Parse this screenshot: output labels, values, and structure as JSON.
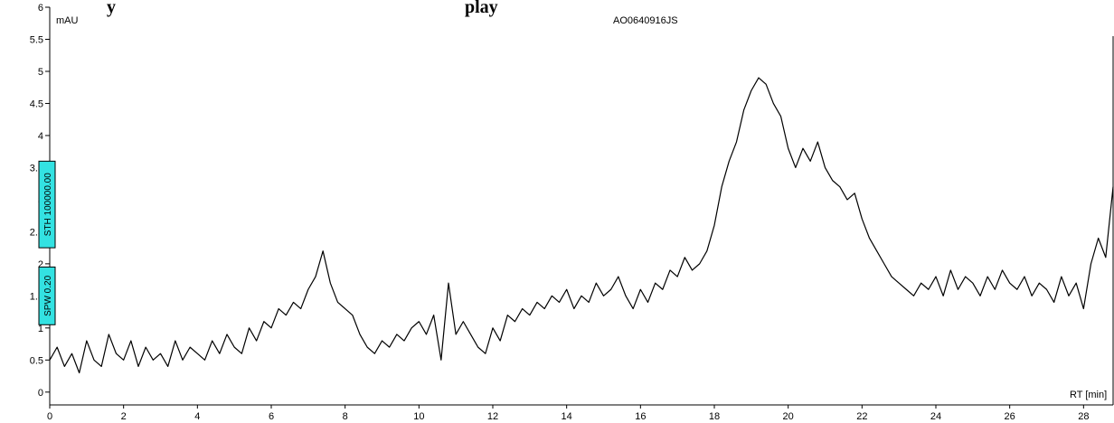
{
  "chart_data": {
    "type": "line",
    "title_fragments": [
      "y",
      "play"
    ],
    "sample_name": "AO0640916JS",
    "ylabel": "mAU",
    "xlabel": "RT [min]",
    "xlim": [
      0,
      28.8
    ],
    "ylim": [
      -0.2,
      6
    ],
    "grid": false,
    "legend": "none",
    "x_ticks": [
      0,
      2,
      4,
      6,
      8,
      10,
      12,
      14,
      16,
      18,
      20,
      22,
      24,
      26,
      28
    ],
    "y_ticks": [
      0,
      0.5,
      1,
      1.5,
      2,
      2.5,
      3,
      3.5,
      4,
      4.5,
      5,
      5.5,
      6
    ],
    "y_tick_labels": [
      "0",
      "0.5",
      "1",
      "1.5",
      "2",
      "2.5",
      "3",
      "3.5",
      "4",
      "4.5",
      "5",
      "5.5",
      "6"
    ],
    "series": [
      {
        "color": "#000000",
        "x": [
          0.0,
          0.2,
          0.4,
          0.6,
          0.8,
          1.0,
          1.2,
          1.4,
          1.6,
          1.8,
          2.0,
          2.2,
          2.4,
          2.6,
          2.8,
          3.0,
          3.2,
          3.4,
          3.6,
          3.8,
          4.0,
          4.2,
          4.4,
          4.6,
          4.8,
          5.0,
          5.2,
          5.4,
          5.6,
          5.8,
          6.0,
          6.2,
          6.4,
          6.6,
          6.8,
          7.0,
          7.2,
          7.4,
          7.6,
          7.8,
          8.0,
          8.2,
          8.4,
          8.6,
          8.8,
          9.0,
          9.2,
          9.4,
          9.6,
          9.8,
          10.0,
          10.2,
          10.4,
          10.6,
          10.8,
          11.0,
          11.2,
          11.4,
          11.6,
          11.8,
          12.0,
          12.2,
          12.4,
          12.6,
          12.8,
          13.0,
          13.2,
          13.4,
          13.6,
          13.8,
          14.0,
          14.2,
          14.4,
          14.6,
          14.8,
          15.0,
          15.2,
          15.4,
          15.6,
          15.8,
          16.0,
          16.2,
          16.4,
          16.6,
          16.8,
          17.0,
          17.2,
          17.4,
          17.6,
          17.8,
          18.0,
          18.2,
          18.4,
          18.6,
          18.8,
          19.0,
          19.2,
          19.4,
          19.6,
          19.8,
          20.0,
          20.2,
          20.4,
          20.6,
          20.8,
          21.0,
          21.2,
          21.4,
          21.6,
          21.8,
          22.0,
          22.2,
          22.4,
          22.6,
          22.8,
          23.0,
          23.2,
          23.4,
          23.6,
          23.8,
          24.0,
          24.2,
          24.4,
          24.6,
          24.8,
          25.0,
          25.2,
          25.4,
          25.6,
          25.8,
          26.0,
          26.2,
          26.4,
          26.6,
          26.8,
          27.0,
          27.2,
          27.4,
          27.6,
          27.8,
          28.0,
          28.2,
          28.4,
          28.6,
          28.8
        ],
        "values": [
          0.5,
          0.7,
          0.4,
          0.6,
          0.3,
          0.8,
          0.5,
          0.4,
          0.9,
          0.6,
          0.5,
          0.8,
          0.4,
          0.7,
          0.5,
          0.6,
          0.4,
          0.8,
          0.5,
          0.7,
          0.6,
          0.5,
          0.8,
          0.6,
          0.9,
          0.7,
          0.6,
          1.0,
          0.8,
          1.1,
          1.0,
          1.3,
          1.2,
          1.4,
          1.3,
          1.6,
          1.8,
          2.2,
          1.7,
          1.4,
          1.3,
          1.2,
          0.9,
          0.7,
          0.6,
          0.8,
          0.7,
          0.9,
          0.8,
          1.0,
          1.1,
          0.9,
          1.2,
          0.5,
          1.7,
          0.9,
          1.1,
          0.9,
          0.7,
          0.6,
          1.0,
          0.8,
          1.2,
          1.1,
          1.3,
          1.2,
          1.4,
          1.3,
          1.5,
          1.4,
          1.6,
          1.3,
          1.5,
          1.4,
          1.7,
          1.5,
          1.6,
          1.8,
          1.5,
          1.3,
          1.6,
          1.4,
          1.7,
          1.6,
          1.9,
          1.8,
          2.1,
          1.9,
          2.0,
          2.2,
          2.6,
          3.2,
          3.6,
          3.9,
          4.4,
          4.7,
          4.9,
          4.8,
          4.5,
          4.3,
          3.8,
          3.5,
          3.8,
          3.6,
          3.9,
          3.5,
          3.3,
          3.2,
          3.0,
          3.1,
          2.7,
          2.4,
          2.2,
          2.0,
          1.8,
          1.7,
          1.6,
          1.5,
          1.7,
          1.6,
          1.8,
          1.5,
          1.9,
          1.6,
          1.8,
          1.7,
          1.5,
          1.8,
          1.6,
          1.9,
          1.7,
          1.6,
          1.8,
          1.5,
          1.7,
          1.6,
          1.4,
          1.8,
          1.5,
          1.7,
          1.3,
          2.0,
          2.4,
          2.1,
          3.2
        ]
      }
    ],
    "parameter_boxes": [
      {
        "text": "STH 100000.00",
        "color": "#33e2e2",
        "y_range": [
          2.25,
          3.6
        ]
      },
      {
        "text": "SPW 0.20",
        "color": "#33e2e2",
        "y_range": [
          1.05,
          1.95
        ]
      }
    ]
  }
}
